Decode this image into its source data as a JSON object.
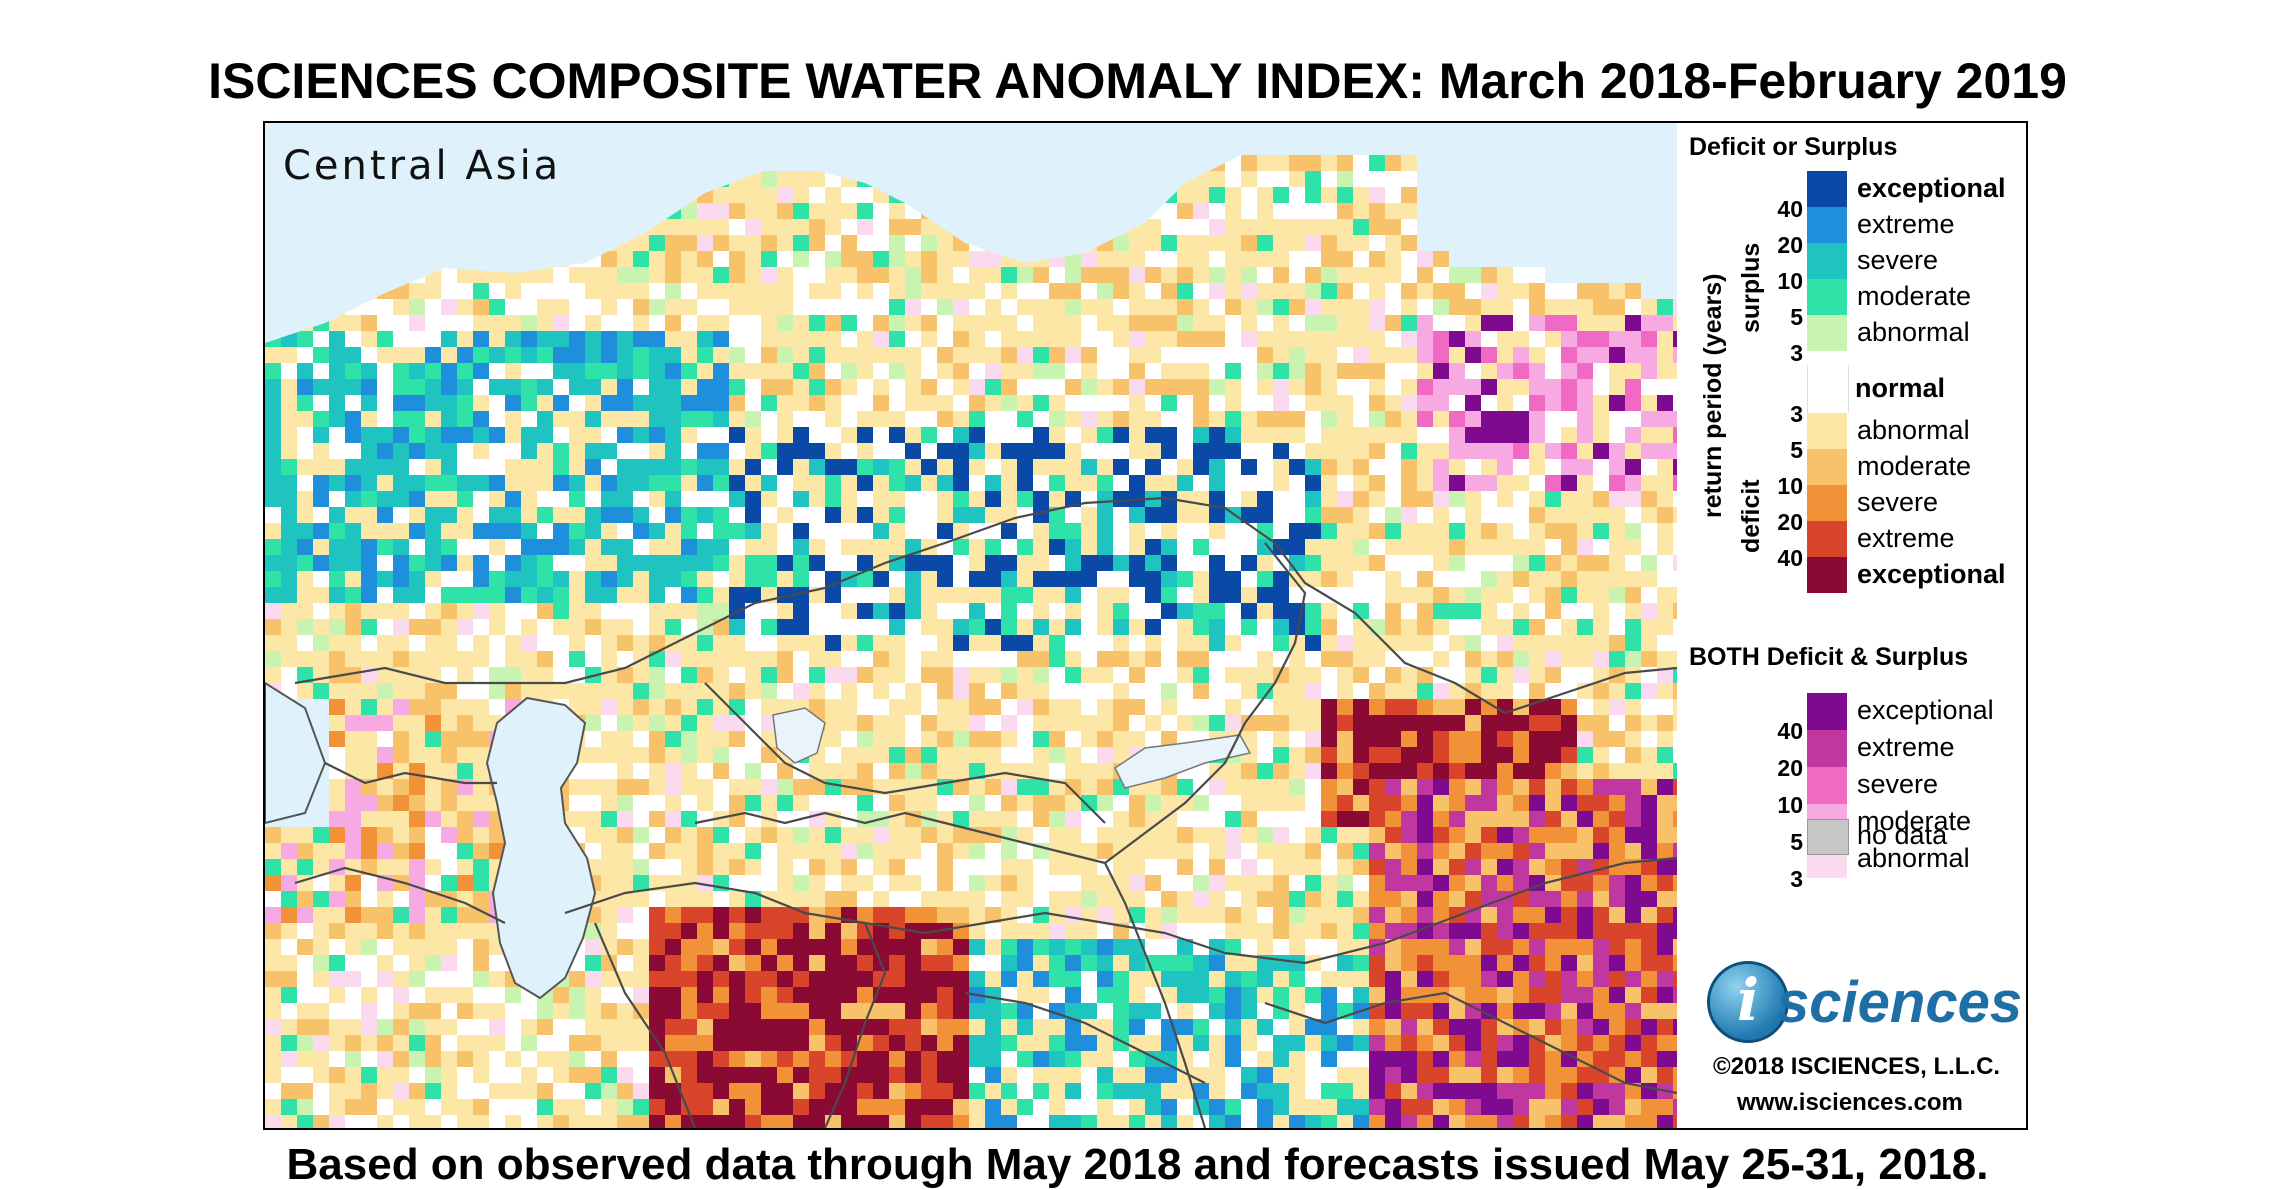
{
  "title": "ISCIENCES COMPOSITE WATER ANOMALY INDEX: March 2018-February 2019",
  "subtitle": "Based on observed data through May 2018 and forecasts issued May 25-31, 2018.",
  "map": {
    "region_label": "Central Asia"
  },
  "legend": {
    "heading": "Deficit or Surplus",
    "axis_label": "return period (years)",
    "surplus_label": "surplus",
    "deficit_label": "deficit",
    "surplus_ticks": [
      "40",
      "20",
      "10",
      "5",
      "3"
    ],
    "deficit_ticks": [
      "3",
      "5",
      "10",
      "20",
      "40"
    ],
    "surplus": [
      {
        "label": "exceptional",
        "color": "#0a4aa6"
      },
      {
        "label": "extreme",
        "color": "#1f8fdc"
      },
      {
        "label": "severe",
        "color": "#1fc3c0"
      },
      {
        "label": "moderate",
        "color": "#2fe3a8"
      },
      {
        "label": "abnormal",
        "color": "#c8f3b0"
      }
    ],
    "normal_label": "normal",
    "deficit": [
      {
        "label": "abnormal",
        "color": "#fce7a6"
      },
      {
        "label": "moderate",
        "color": "#f8c26a"
      },
      {
        "label": "severe",
        "color": "#f29238"
      },
      {
        "label": "extreme",
        "color": "#d9452a"
      },
      {
        "label": "exceptional",
        "color": "#8b0a33"
      }
    ],
    "both_heading": "BOTH Deficit & Surplus",
    "both_ticks": [
      "40",
      "20",
      "10",
      "5",
      "3"
    ],
    "both": [
      {
        "label": "exceptional",
        "color": "#7d0a8f"
      },
      {
        "label": "extreme",
        "color": "#c0389f"
      },
      {
        "label": "severe",
        "color": "#f06ac4"
      },
      {
        "label": "moderate",
        "color": "#f7a9e2"
      },
      {
        "label": "abnormal",
        "color": "#fbdaf0"
      }
    ],
    "no_data_label": "no data",
    "no_data_color": "#c6c6c6"
  },
  "branding": {
    "logo_letter": "i",
    "logo_text": "sciences",
    "copyright": "©2018 ISCIENCES, L.L.C.",
    "website": "www.isciences.com"
  }
}
